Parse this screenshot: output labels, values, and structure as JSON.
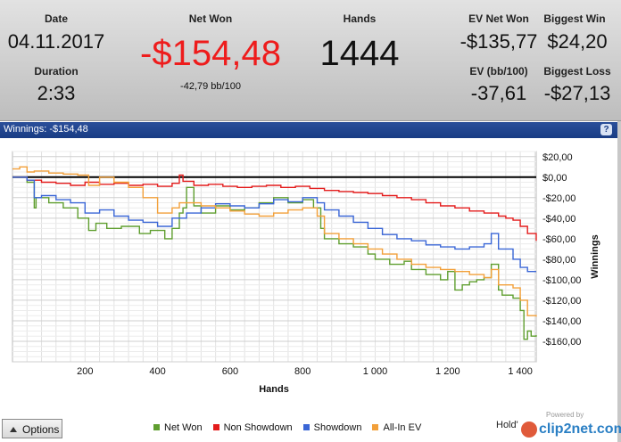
{
  "header": {
    "date_label": "Date",
    "date_value": "04.11.2017",
    "duration_label": "Duration",
    "duration_value": "2:33",
    "netwon_label": "Net Won",
    "netwon_value": "-$154,48",
    "netwon_sub": "-42,79 bb/100",
    "hands_label": "Hands",
    "hands_value": "1444",
    "ev_netwon_label": "EV Net Won",
    "ev_netwon_value": "-$135,77",
    "biggest_win_label": "Biggest Win",
    "biggest_win_value": "$24,20",
    "ev_bb_label": "EV (bb/100)",
    "ev_bb_value": "-37,61",
    "biggest_loss_label": "Biggest Loss",
    "biggest_loss_value": "-$27,13"
  },
  "colors": {
    "netwon_value": "#ee1c1c",
    "net_won": "#5f9e2f",
    "non_showdown": "#e31c1c",
    "showdown": "#3a66d6",
    "allin_ev": "#f2a03a"
  },
  "panel": {
    "title": "Winnings: -$154,48",
    "help": "?"
  },
  "footer": {
    "options_label": "Options",
    "holdem_label": "Hold'",
    "watermark_powered": "Powered by",
    "watermark_text": "clip2net.com"
  },
  "chart_data": {
    "type": "line",
    "title": "",
    "xlabel": "Hands",
    "ylabel": "Winnings",
    "xlim": [
      0,
      1444
    ],
    "ylim": [
      -180,
      25
    ],
    "x_ticks": [
      200,
      400,
      600,
      800,
      1000,
      1200,
      1400
    ],
    "x_tick_labels": [
      "200",
      "400",
      "600",
      "800",
      "1 000",
      "1 200",
      "1 400"
    ],
    "y_ticks": [
      20,
      0,
      -20,
      -40,
      -60,
      -80,
      -100,
      -120,
      -140,
      -160
    ],
    "y_tick_labels": [
      "$20,00",
      "$0,00",
      "-$20,00",
      "-$40,00",
      "-$60,00",
      "-$80,00",
      "-$100,00",
      "-$120,00",
      "-$140,00",
      "-$160,00"
    ],
    "grid": true,
    "legend_position": "bottom",
    "series": [
      {
        "name": "Net Won",
        "color": "#5f9e2f",
        "x": [
          0,
          40,
          60,
          65,
          100,
          140,
          180,
          210,
          230,
          260,
          300,
          350,
          380,
          420,
          440,
          460,
          470,
          480,
          500,
          520,
          560,
          600,
          640,
          680,
          720,
          760,
          800,
          830,
          850,
          860,
          900,
          940,
          980,
          1000,
          1040,
          1080,
          1100,
          1140,
          1180,
          1200,
          1220,
          1240,
          1260,
          1280,
          1300,
          1320,
          1340,
          1350,
          1380,
          1400,
          1410,
          1420,
          1430,
          1444
        ],
        "y": [
          0,
          -5,
          -30,
          -20,
          -25,
          -30,
          -40,
          -52,
          -45,
          -50,
          -48,
          -55,
          -52,
          -60,
          -50,
          -35,
          -30,
          -10,
          -28,
          -35,
          -28,
          -32,
          -30,
          -25,
          -20,
          -25,
          -22,
          -30,
          -50,
          -60,
          -65,
          -68,
          -75,
          -80,
          -85,
          -82,
          -90,
          -95,
          -100,
          -92,
          -110,
          -105,
          -102,
          -100,
          -98,
          -85,
          -110,
          -115,
          -118,
          -130,
          -158,
          -150,
          -155,
          -154
        ]
      },
      {
        "name": "Non Showdown",
        "color": "#e31c1c",
        "x": [
          0,
          40,
          80,
          120,
          160,
          200,
          240,
          280,
          320,
          360,
          400,
          440,
          460,
          470,
          500,
          540,
          580,
          620,
          660,
          700,
          740,
          780,
          820,
          860,
          900,
          940,
          980,
          1020,
          1060,
          1100,
          1140,
          1180,
          1220,
          1260,
          1300,
          1340,
          1360,
          1380,
          1400,
          1420,
          1444
        ],
        "y": [
          0,
          -3,
          -5,
          -6,
          -8,
          -5,
          -7,
          -6,
          -8,
          -7,
          -9,
          -6,
          2,
          -4,
          -8,
          -7,
          -9,
          -10,
          -9,
          -8,
          -10,
          -9,
          -11,
          -13,
          -14,
          -15,
          -16,
          -18,
          -20,
          -22,
          -25,
          -28,
          -30,
          -33,
          -35,
          -38,
          -40,
          -42,
          -48,
          -55,
          -62
        ]
      },
      {
        "name": "Showdown",
        "color": "#3a66d6",
        "x": [
          0,
          40,
          60,
          80,
          120,
          160,
          200,
          240,
          280,
          320,
          360,
          400,
          440,
          480,
          520,
          560,
          600,
          640,
          680,
          720,
          760,
          800,
          840,
          860,
          900,
          940,
          980,
          1020,
          1060,
          1100,
          1140,
          1180,
          1220,
          1260,
          1300,
          1320,
          1340,
          1380,
          1400,
          1420,
          1444
        ],
        "y": [
          0,
          -3,
          -20,
          -18,
          -22,
          -25,
          -35,
          -32,
          -38,
          -42,
          -44,
          -48,
          -40,
          -35,
          -30,
          -26,
          -28,
          -30,
          -26,
          -22,
          -24,
          -20,
          -25,
          -32,
          -38,
          -44,
          -50,
          -56,
          -60,
          -62,
          -66,
          -68,
          -70,
          -68,
          -65,
          -55,
          -70,
          -80,
          -88,
          -92,
          -92
        ]
      },
      {
        "name": "All-In EV",
        "color": "#f2a03a",
        "x": [
          0,
          20,
          40,
          60,
          100,
          140,
          180,
          210,
          240,
          280,
          320,
          360,
          400,
          440,
          460,
          480,
          520,
          560,
          600,
          640,
          680,
          720,
          760,
          800,
          840,
          860,
          900,
          940,
          980,
          1020,
          1060,
          1100,
          1140,
          1180,
          1220,
          1260,
          1300,
          1320,
          1340,
          1380,
          1400,
          1420,
          1444
        ],
        "y": [
          8,
          10,
          5,
          6,
          4,
          3,
          2,
          -8,
          0,
          -5,
          -10,
          -20,
          -35,
          -30,
          -25,
          -25,
          -28,
          -30,
          -33,
          -36,
          -38,
          -35,
          -32,
          -30,
          -38,
          -55,
          -60,
          -65,
          -70,
          -75,
          -80,
          -85,
          -88,
          -90,
          -92,
          -95,
          -98,
          -90,
          -105,
          -108,
          -120,
          -135,
          -136
        ]
      }
    ]
  }
}
